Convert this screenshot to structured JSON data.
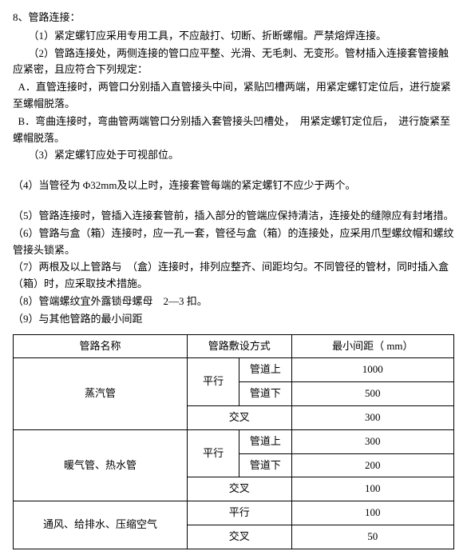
{
  "heading": "8、管路连接：",
  "lines": [
    "（1）紧定螺钉应采用专用工具，不应敲打、切断、折断螺帽。严禁熔焊连接。",
    "（2）管路连接处，两侧连接的管口应平整、光滑、无毛刺、无变形。管材插入连接套管接触应紧密，且应符合下列规定：",
    "A．直管连接时，两管口分别插入直管接头中间，紧贴凹槽两端，用紧定螺钉定位后，进行旋紧至螺帽脱落。",
    "B．弯曲连接时，弯曲管两端管口分别插入套管接头凹槽处，　用紧定螺钉定位后，　进行旋紧至螺帽脱落。",
    "（3）紧定螺钉应处于可视部位。",
    "（4）当管径为 Φ32mm及以上时，连接套管每端的紧定螺钉不应少于两个。",
    "（5）管路连接时，管插入连接套管前，插入部分的管端应保持清洁，连接处的缝隙应有封堵措。",
    "（6）管路与盒（箱）连接时，应一孔一套，管径与盒（箱）的连接处，应采用爪型螺纹帽和螺纹管接头锁紧。",
    "（7）两根及以上管路与　（盒）连接时，排列应整齐、间距均匀。不同管径的管材，同时插入盒（箱）时，应采取技术措施。",
    "（8）管端螺纹宜外露锁母螺母　2—3 扣。",
    "（9）与其他管路的最小间距"
  ],
  "table": {
    "header": {
      "name": "管路名称",
      "layout": "管路敷设方式",
      "dist": "最小间距（ mm）"
    },
    "rows": [
      {
        "name": "蒸汽管",
        "subrows": [
          {
            "layoutA": "平行",
            "layoutB": "管道上",
            "dist": "1000"
          },
          {
            "layoutA": "",
            "layoutB": "管道下",
            "dist": "500"
          },
          {
            "layoutA": "交叉",
            "layoutB": "",
            "dist": "300"
          }
        ]
      },
      {
        "name": "暖气管、热水管",
        "subrows": [
          {
            "layoutA": "平行",
            "layoutB": "管道上",
            "dist": "300"
          },
          {
            "layoutA": "",
            "layoutB": "管道下",
            "dist": "200"
          },
          {
            "layoutA": "交叉",
            "layoutB": "",
            "dist": "100"
          }
        ]
      },
      {
        "name": "通风、给排水、压缩空气",
        "subrows": [
          {
            "layoutA": "平行",
            "layoutB": "",
            "dist": "100"
          },
          {
            "layoutA": "交叉",
            "layoutB": "",
            "dist": "50"
          }
        ]
      }
    ]
  }
}
